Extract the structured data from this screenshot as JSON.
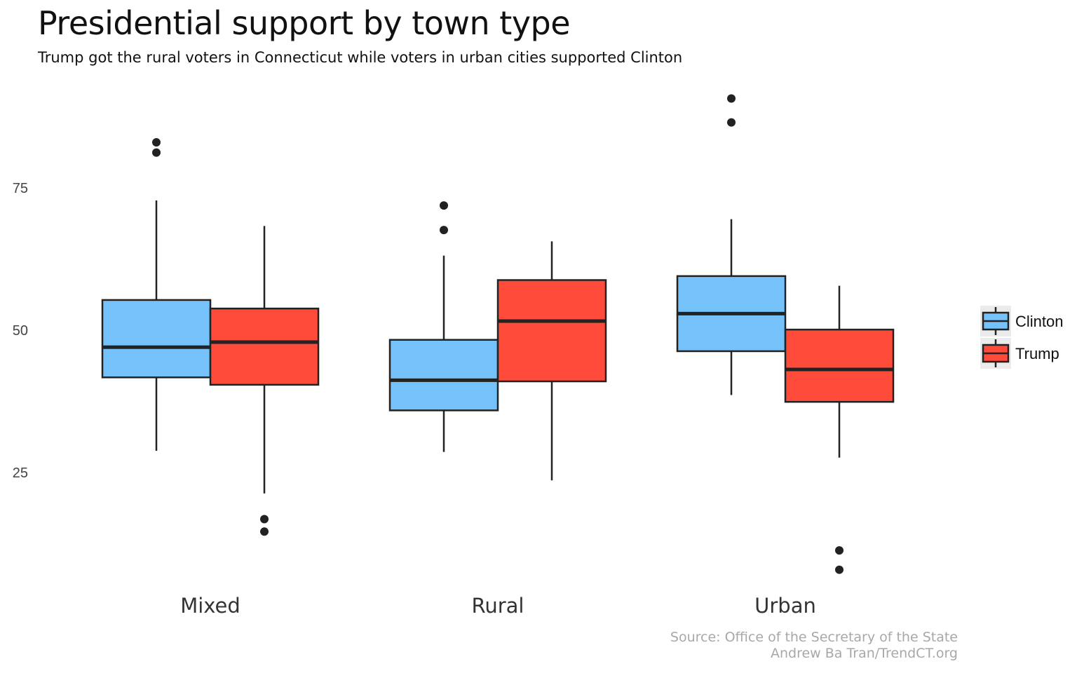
{
  "chart_data": {
    "type": "boxplot",
    "title": "Presidential support by town type",
    "subtitle": "Trump got the rural voters in Connecticut while voters in urban cities supported Clinton",
    "caption": [
      "Source: Office of the Secretary of the State",
      "Andrew Ba Tran/TrendCT.org"
    ],
    "xlabel": "",
    "ylabel": "",
    "categories": [
      "Mixed",
      "Rural",
      "Urban"
    ],
    "yticks": [
      25,
      50,
      75
    ],
    "ylim": [
      7,
      92
    ],
    "grid": false,
    "legend": {
      "position": "right",
      "entries": [
        "Clinton",
        "Trump"
      ]
    },
    "colors": {
      "Clinton": "#75C1FA",
      "Trump": "#FF4B3A",
      "outline": "#222222"
    },
    "series": [
      {
        "name": "Clinton",
        "boxes": [
          {
            "category": "Mixed",
            "whisker_low": 28.8,
            "q1": 41.7,
            "median": 47.0,
            "q3": 55.3,
            "whisker_high": 72.8,
            "outliers": [
              81.2,
              83.0
            ]
          },
          {
            "category": "Rural",
            "whisker_low": 28.6,
            "q1": 35.9,
            "median": 41.2,
            "q3": 48.3,
            "whisker_high": 63.1,
            "outliers": [
              67.6,
              71.9
            ]
          },
          {
            "category": "Urban",
            "whisker_low": 38.6,
            "q1": 46.3,
            "median": 52.9,
            "q3": 59.5,
            "whisker_high": 69.5,
            "outliers": [
              86.5,
              90.7
            ]
          }
        ]
      },
      {
        "name": "Trump",
        "boxes": [
          {
            "category": "Mixed",
            "whisker_low": 21.3,
            "q1": 40.4,
            "median": 47.9,
            "q3": 53.8,
            "whisker_high": 68.3,
            "outliers": [
              14.6,
              16.8
            ]
          },
          {
            "category": "Rural",
            "whisker_low": 23.6,
            "q1": 41.0,
            "median": 51.6,
            "q3": 58.8,
            "whisker_high": 65.6,
            "outliers": []
          },
          {
            "category": "Urban",
            "whisker_low": 27.6,
            "q1": 37.4,
            "median": 43.1,
            "q3": 50.1,
            "whisker_high": 57.8,
            "outliers": [
              7.9,
              11.3
            ]
          }
        ]
      }
    ]
  }
}
